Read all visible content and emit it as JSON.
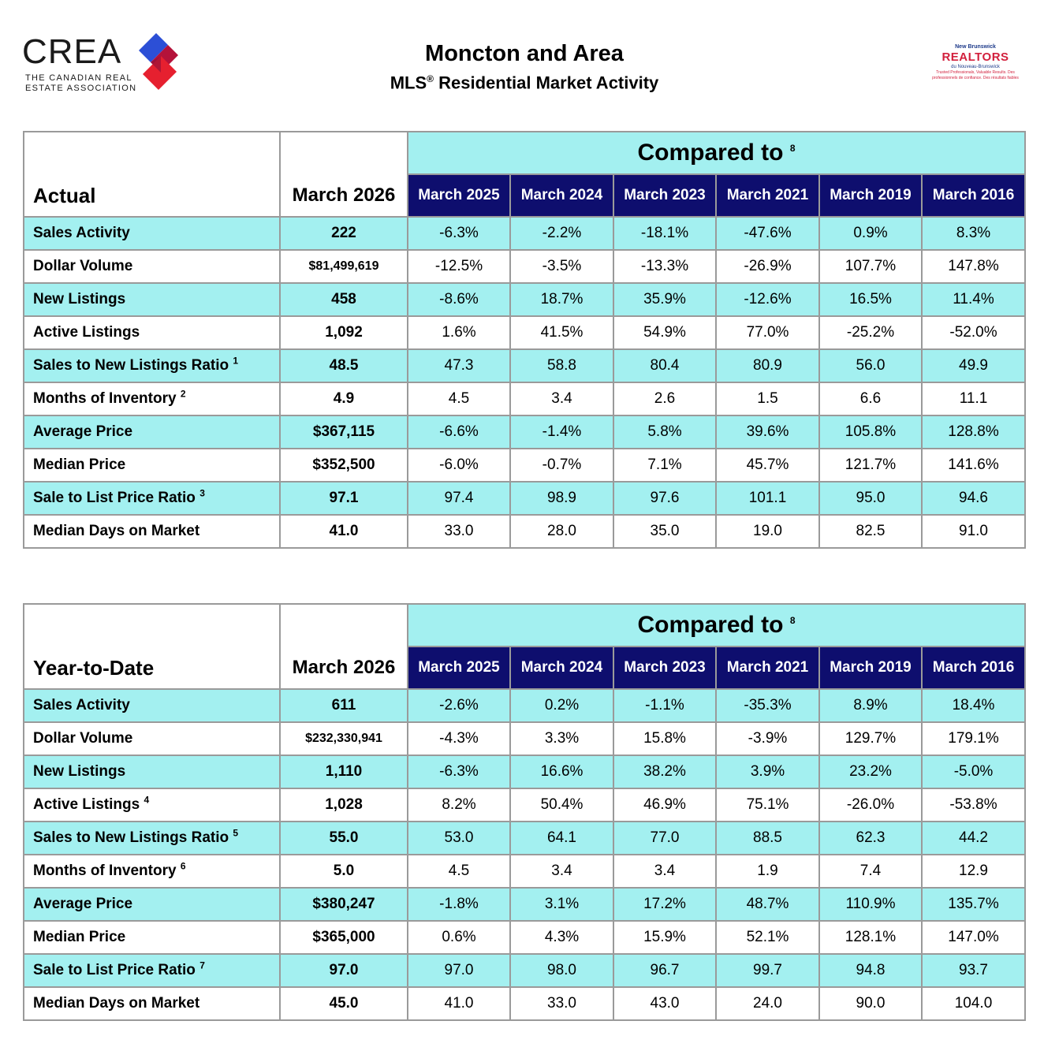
{
  "header": {
    "crea_wordmark": "CREA",
    "crea_subtitle_1": "THE CANADIAN REAL",
    "crea_subtitle_2": "ESTATE ASSOCIATION",
    "title": "Moncton and Area",
    "subtitle": "MLS",
    "subtitle_reg": "®",
    "subtitle_rest": " Residential Market Activity",
    "nb_top": "New Brunswick",
    "nb_main": "REALTORS",
    "nb_fr": "du Nouveau-Brunswick",
    "nb_tag": "Trusted Professionals, Valuable Results. Des professionnels de confiance. Des résultats fiables"
  },
  "colors": {
    "cyan": "#a3f0f0",
    "navy": "#0e0e6e",
    "border": "#9a9a9a"
  },
  "compared_label": "Compared to",
  "compared_note": "8",
  "columns": [
    "March 2025",
    "March 2024",
    "March 2023",
    "March 2021",
    "March 2019",
    "March 2016"
  ],
  "actual": {
    "heading": "Actual",
    "current_label": "March 2026",
    "rows": [
      {
        "label": "Sales Activity",
        "note": "",
        "current": "222",
        "values": [
          "-6.3%",
          "-2.2%",
          "-18.1%",
          "-47.6%",
          "0.9%",
          "8.3%"
        ]
      },
      {
        "label": "Dollar Volume",
        "note": "",
        "current": "$81,499,619",
        "values": [
          "-12.5%",
          "-3.5%",
          "-13.3%",
          "-26.9%",
          "107.7%",
          "147.8%"
        ]
      },
      {
        "label": "New Listings",
        "note": "",
        "current": "458",
        "values": [
          "-8.6%",
          "18.7%",
          "35.9%",
          "-12.6%",
          "16.5%",
          "11.4%"
        ]
      },
      {
        "label": "Active Listings",
        "note": "",
        "current": "1,092",
        "values": [
          "1.6%",
          "41.5%",
          "54.9%",
          "77.0%",
          "-25.2%",
          "-52.0%"
        ]
      },
      {
        "label": "Sales to New Listings Ratio",
        "note": "1",
        "current": "48.5",
        "values": [
          "47.3",
          "58.8",
          "80.4",
          "80.9",
          "56.0",
          "49.9"
        ]
      },
      {
        "label": "Months of Inventory",
        "note": "2",
        "current": "4.9",
        "values": [
          "4.5",
          "3.4",
          "2.6",
          "1.5",
          "6.6",
          "11.1"
        ]
      },
      {
        "label": "Average Price",
        "note": "",
        "current": "$367,115",
        "values": [
          "-6.6%",
          "-1.4%",
          "5.8%",
          "39.6%",
          "105.8%",
          "128.8%"
        ]
      },
      {
        "label": "Median Price",
        "note": "",
        "current": "$352,500",
        "values": [
          "-6.0%",
          "-0.7%",
          "7.1%",
          "45.7%",
          "121.7%",
          "141.6%"
        ]
      },
      {
        "label": "Sale to List Price Ratio",
        "note": "3",
        "current": "97.1",
        "values": [
          "97.4",
          "98.9",
          "97.6",
          "101.1",
          "95.0",
          "94.6"
        ]
      },
      {
        "label": "Median Days on Market",
        "note": "",
        "current": "41.0",
        "values": [
          "33.0",
          "28.0",
          "35.0",
          "19.0",
          "82.5",
          "91.0"
        ]
      }
    ]
  },
  "ytd": {
    "heading": "Year-to-Date",
    "current_label": "March 2026",
    "rows": [
      {
        "label": "Sales Activity",
        "note": "",
        "current": "611",
        "values": [
          "-2.6%",
          "0.2%",
          "-1.1%",
          "-35.3%",
          "8.9%",
          "18.4%"
        ]
      },
      {
        "label": "Dollar Volume",
        "note": "",
        "current": "$232,330,941",
        "values": [
          "-4.3%",
          "3.3%",
          "15.8%",
          "-3.9%",
          "129.7%",
          "179.1%"
        ]
      },
      {
        "label": "New Listings",
        "note": "",
        "current": "1,110",
        "values": [
          "-6.3%",
          "16.6%",
          "38.2%",
          "3.9%",
          "23.2%",
          "-5.0%"
        ]
      },
      {
        "label": "Active Listings",
        "note": "4",
        "current": "1,028",
        "values": [
          "8.2%",
          "50.4%",
          "46.9%",
          "75.1%",
          "-26.0%",
          "-53.8%"
        ]
      },
      {
        "label": "Sales to New Listings Ratio",
        "note": "5",
        "current": "55.0",
        "values": [
          "53.0",
          "64.1",
          "77.0",
          "88.5",
          "62.3",
          "44.2"
        ]
      },
      {
        "label": "Months of Inventory",
        "note": "6",
        "current": "5.0",
        "values": [
          "4.5",
          "3.4",
          "3.4",
          "1.9",
          "7.4",
          "12.9"
        ]
      },
      {
        "label": "Average Price",
        "note": "",
        "current": "$380,247",
        "values": [
          "-1.8%",
          "3.1%",
          "17.2%",
          "48.7%",
          "110.9%",
          "135.7%"
        ]
      },
      {
        "label": "Median Price",
        "note": "",
        "current": "$365,000",
        "values": [
          "0.6%",
          "4.3%",
          "15.9%",
          "52.1%",
          "128.1%",
          "147.0%"
        ]
      },
      {
        "label": "Sale to List Price Ratio",
        "note": "7",
        "current": "97.0",
        "values": [
          "97.0",
          "98.0",
          "96.7",
          "99.7",
          "94.8",
          "93.7"
        ]
      },
      {
        "label": "Median Days on Market",
        "note": "",
        "current": "45.0",
        "values": [
          "41.0",
          "33.0",
          "43.0",
          "24.0",
          "90.0",
          "104.0"
        ]
      }
    ]
  }
}
